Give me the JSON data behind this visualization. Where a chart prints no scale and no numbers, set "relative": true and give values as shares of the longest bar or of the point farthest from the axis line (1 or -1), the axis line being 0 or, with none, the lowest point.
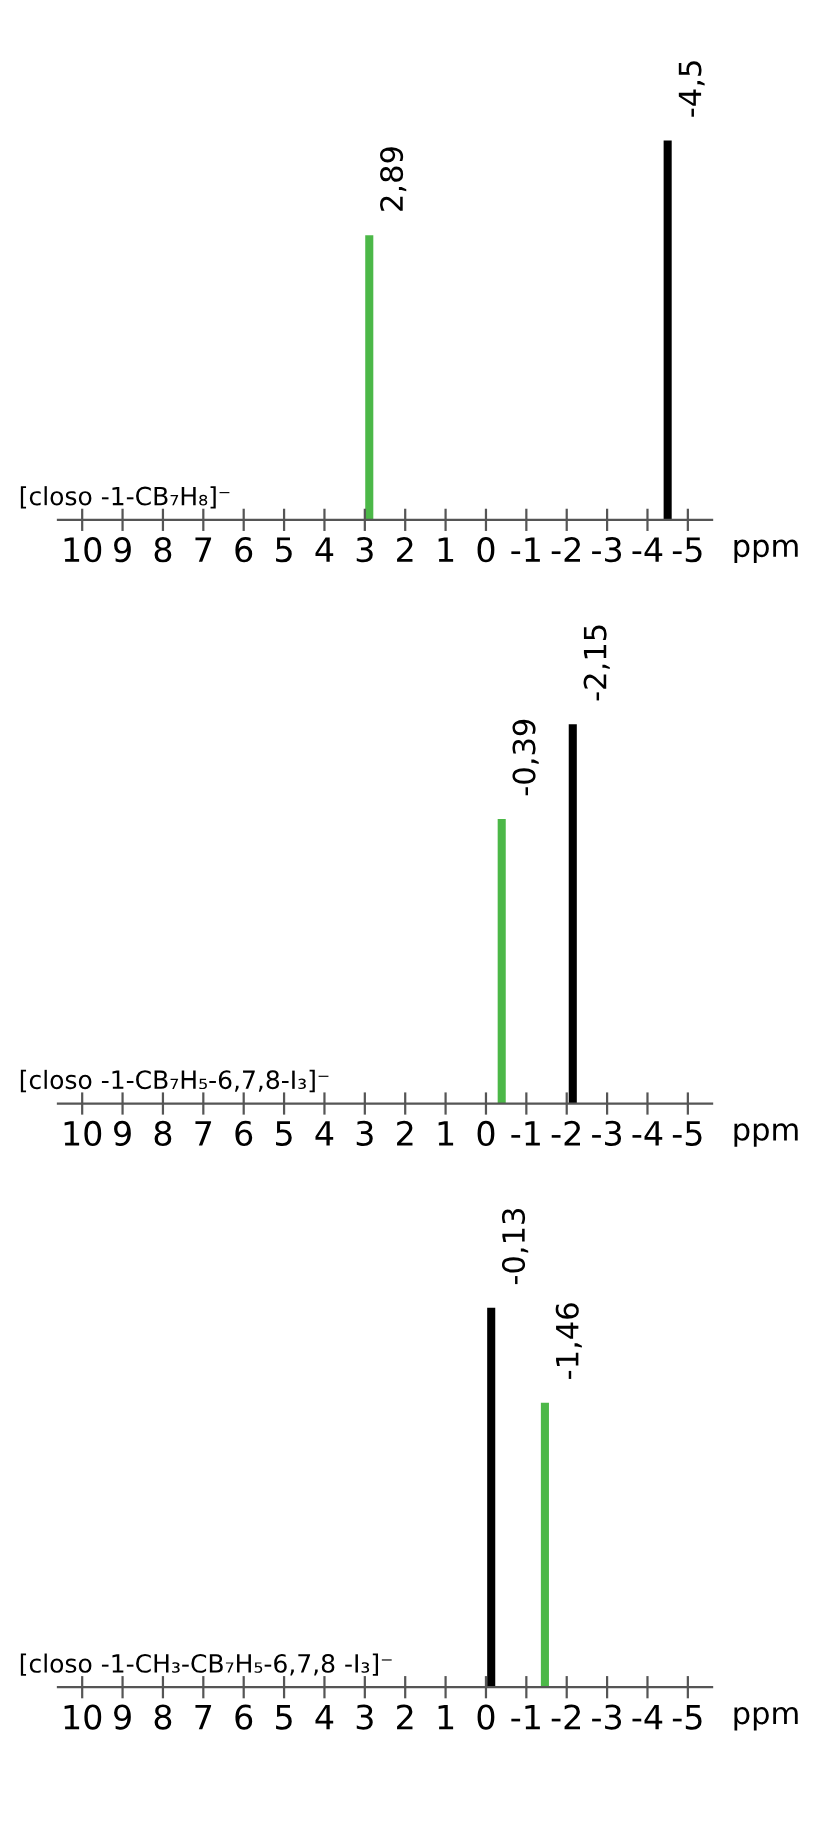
{
  "chart_data": [
    {
      "type": "bar",
      "title": "[closo -1-CB₇H₈]⁻",
      "xlabel": "ppm",
      "relative": true,
      "x": [
        2.89,
        -4.5
      ],
      "values": [
        0.75,
        1
      ],
      "colors": [
        "#4cb848",
        "#000000"
      ],
      "xlim": [
        10.6,
        -5.6
      ],
      "xticks": [
        10,
        9,
        8,
        7,
        6,
        5,
        4,
        3,
        2,
        1,
        0,
        -1,
        -2,
        -3,
        -4,
        -5
      ],
      "tick_labels": "x",
      "grid": false,
      "annotations": [
        {
          "text": "2,89",
          "x": 2.89,
          "y": 0.75
        },
        {
          "text": "-4,5",
          "x": -4.5,
          "y": 1
        }
      ]
    },
    {
      "type": "bar",
      "title": "[closo -1-CB₇H₅-6,7,8-I₃]⁻",
      "xlabel": "ppm",
      "relative": true,
      "x": [
        -0.39,
        -2.15
      ],
      "values": [
        0.75,
        1
      ],
      "colors": [
        "#4cb848",
        "#000000"
      ],
      "xlim": [
        10.6,
        -5.6
      ],
      "xticks": [
        10,
        9,
        8,
        7,
        6,
        5,
        4,
        3,
        2,
        1,
        0,
        -1,
        -2,
        -3,
        -4,
        -5
      ],
      "tick_labels": "x",
      "grid": false,
      "annotations": [
        {
          "text": "-0,39",
          "x": -0.39,
          "y": 0.75
        },
        {
          "text": "-2,15",
          "x": -2.15,
          "y": 1
        }
      ]
    },
    {
      "type": "bar",
      "title": "[closo -1-CH₃-CB₇H₅-6,7,8 -I₃]⁻",
      "xlabel": "ppm",
      "relative": true,
      "x": [
        -0.13,
        -1.46
      ],
      "values": [
        1,
        0.75
      ],
      "colors": [
        "#000000",
        "#4cb848"
      ],
      "xlim": [
        10.6,
        -5.6
      ],
      "xticks": [
        10,
        9,
        8,
        7,
        6,
        5,
        4,
        3,
        2,
        1,
        0,
        -1,
        -2,
        -3,
        -4,
        -5
      ],
      "tick_labels": "x",
      "grid": false,
      "annotations": [
        {
          "text": "-0,13",
          "x": -0.13,
          "y": 1
        },
        {
          "text": "-1,46",
          "x": -1.46,
          "y": 0.75
        }
      ]
    }
  ]
}
